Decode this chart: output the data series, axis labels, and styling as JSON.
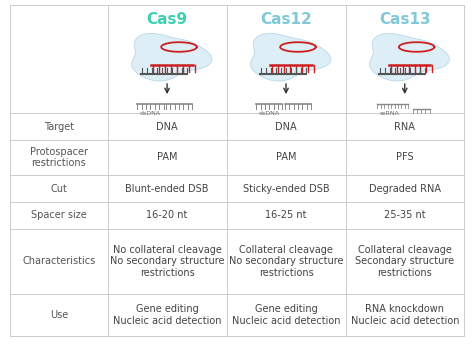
{
  "headers": [
    "Cas9",
    "Cas12",
    "Cas13"
  ],
  "header_colors": [
    "#3ecfb2",
    "#7ec8d8",
    "#7ec8d8"
  ],
  "rows": [
    {
      "label": "Target",
      "values": [
        "DNA",
        "DNA",
        "RNA"
      ]
    },
    {
      "label": "Protospacer\nrestrictions",
      "values": [
        "PAM",
        "PAM",
        "PFS"
      ]
    },
    {
      "label": "Cut",
      "values": [
        "Blunt-ended DSB",
        "Sticky-ended DSB",
        "Degraded RNA"
      ]
    },
    {
      "label": "Spacer size",
      "values": [
        "16-20 nt",
        "16-25 nt",
        "25-35 nt"
      ]
    },
    {
      "label": "Characteristics",
      "values": [
        "No collateral cleavage\nNo secondary structure\nrestrictions",
        "Collateral cleavage\nNo secondary structure\nrestrictions",
        "Collateral cleavage\nSecondary structure\nrestrictions"
      ]
    },
    {
      "label": "Use",
      "values": [
        "Gene editing\nNucleic acid detection",
        "Gene editing\nNucleic acid detection",
        "RNA knockdown\nNucleic acid detection"
      ]
    }
  ],
  "dna_labels": [
    "dsDNA",
    "dsDNA",
    "ssRNA"
  ],
  "bg_color": "#ffffff",
  "border_color": "#cccccc",
  "text_color": "#444444",
  "label_color": "#555555",
  "blob_color": "#ddeef6",
  "blob_edge_color": "#b8d8e8",
  "label_fontsize": 7,
  "value_fontsize": 7,
  "header_fontsize": 11
}
